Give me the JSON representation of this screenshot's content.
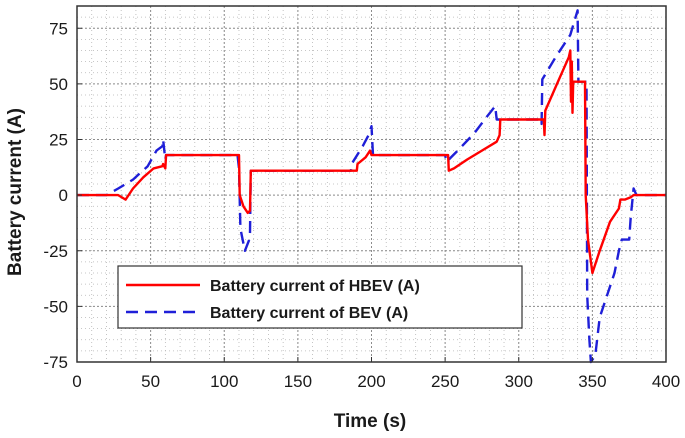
{
  "chart_data": {
    "type": "line",
    "xlabel": "Time (s)",
    "ylabel": "Battery current (A)",
    "xlim": [
      0,
      400
    ],
    "ylim": [
      -75,
      85
    ],
    "xticks": [
      0,
      50,
      100,
      150,
      200,
      250,
      300,
      350,
      400
    ],
    "yticks": [
      75,
      50,
      25,
      0,
      -25,
      -50,
      -75
    ],
    "grid": true,
    "grid_style": "dotted major and minor",
    "legend_position": "bottom-left",
    "series": [
      {
        "name": "Battery current of  HBEV (A)",
        "color": "#ff0000",
        "style": "solid",
        "x": [
          0,
          28,
          33,
          38,
          45,
          52,
          58,
          58.5,
          60,
          60.5,
          110,
          110.5,
          113,
          116,
          117.5,
          118,
          190,
          190.5,
          196,
          198,
          199,
          200,
          252,
          252.5,
          256,
          265,
          275,
          285,
          287,
          287.5,
          317,
          317.5,
          318,
          326,
          334,
          335,
          335.5,
          336,
          336.5,
          337,
          345,
          345.5,
          347,
          350,
          355,
          362,
          368,
          369,
          372,
          376,
          378,
          380,
          400
        ],
        "y": [
          0,
          0,
          -2,
          3,
          8,
          12,
          13,
          14,
          12,
          18,
          18,
          0,
          -5,
          -8,
          -7,
          11,
          11,
          14,
          17,
          19,
          20,
          18,
          18,
          11,
          12,
          16,
          20,
          24,
          27,
          34,
          34,
          27,
          38,
          50,
          62,
          65,
          42,
          60,
          37,
          51,
          51,
          0,
          -20,
          -35,
          -25,
          -12,
          -6,
          -2,
          -2,
          -1,
          0,
          0,
          0
        ]
      },
      {
        "name": "Battery current of BEV (A)",
        "color": "#1f1fd8",
        "style": "dashed",
        "x": [
          0,
          20,
          28,
          38,
          48,
          54,
          58,
          58.5,
          60,
          60.5,
          109,
          110,
          111,
          114,
          117,
          117.5,
          118,
          186,
          186.5,
          194,
          198,
          200,
          201,
          250,
          251,
          260,
          270,
          278,
          284,
          285,
          315,
          315.5,
          316,
          325,
          335,
          340,
          340.5,
          346,
          346.5,
          348,
          349,
          352,
          355,
          360,
          365,
          368,
          370,
          375,
          376,
          378,
          380,
          400
        ],
        "y": [
          0,
          0,
          3,
          7,
          13,
          20,
          22,
          25,
          16,
          18,
          18,
          12,
          -15,
          -25,
          -20,
          -17,
          11,
          11,
          14,
          22,
          27,
          31,
          18,
          18,
          15,
          21,
          28,
          35,
          40,
          34,
          34,
          32,
          52,
          62,
          72,
          83,
          51,
          51,
          -45,
          -65,
          -75,
          -72,
          -55,
          -45,
          -35,
          -25,
          -20,
          -20,
          -10,
          3,
          0,
          0
        ]
      }
    ]
  }
}
